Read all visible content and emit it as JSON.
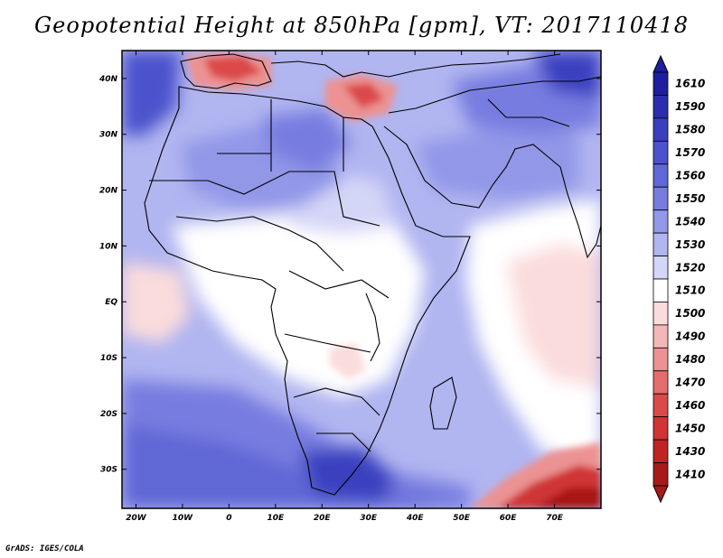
{
  "title": "Geopotential Height at 850hPa [gpm], VT: 2017110418",
  "credit": "GrADS: IGES/COLA",
  "map": {
    "lon_range": [
      -23,
      80
    ],
    "lat_range": [
      -37,
      45
    ],
    "lon_ticks": [
      {
        "lon": -20,
        "label": "20W"
      },
      {
        "lon": -10,
        "label": "10W"
      },
      {
        "lon": 0,
        "label": "0"
      },
      {
        "lon": 10,
        "label": "10E"
      },
      {
        "lon": 20,
        "label": "20E"
      },
      {
        "lon": 30,
        "label": "30E"
      },
      {
        "lon": 40,
        "label": "40E"
      },
      {
        "lon": 50,
        "label": "50E"
      },
      {
        "lon": 60,
        "label": "60E"
      },
      {
        "lon": 70,
        "label": "70E"
      }
    ],
    "lat_ticks": [
      {
        "lat": 40,
        "label": "40N"
      },
      {
        "lat": 30,
        "label": "30N"
      },
      {
        "lat": 20,
        "label": "20N"
      },
      {
        "lat": 10,
        "label": "10N"
      },
      {
        "lat": 0,
        "label": "EQ"
      },
      {
        "lat": -10,
        "label": "10S"
      },
      {
        "lat": -20,
        "label": "20S"
      },
      {
        "lat": -30,
        "label": "30S"
      }
    ]
  },
  "legend": {
    "levels": [
      {
        "label": "1610",
        "color": "#1d1f9e"
      },
      {
        "label": "1590",
        "color": "#2a2eae"
      },
      {
        "label": "1580",
        "color": "#3a3fbf"
      },
      {
        "label": "1570",
        "color": "#4c52cc"
      },
      {
        "label": "1560",
        "color": "#6067d6"
      },
      {
        "label": "1550",
        "color": "#777de0"
      },
      {
        "label": "1540",
        "color": "#9297e8"
      },
      {
        "label": "1530",
        "color": "#b1b5f0"
      },
      {
        "label": "1520",
        "color": "#d4d6f7"
      },
      {
        "label": "1510",
        "color": "#ffffff"
      },
      {
        "label": "1500",
        "color": "#fbdcdc"
      },
      {
        "label": "1490",
        "color": "#f4b7b7"
      },
      {
        "label": "1480",
        "color": "#ec9292"
      },
      {
        "label": "1470",
        "color": "#e46d6d"
      },
      {
        "label": "1460",
        "color": "#db4a4a"
      },
      {
        "label": "1450",
        "color": "#d03434"
      },
      {
        "label": "1430",
        "color": "#bf2424"
      },
      {
        "label": "1410",
        "color": "#a81919"
      }
    ]
  }
}
